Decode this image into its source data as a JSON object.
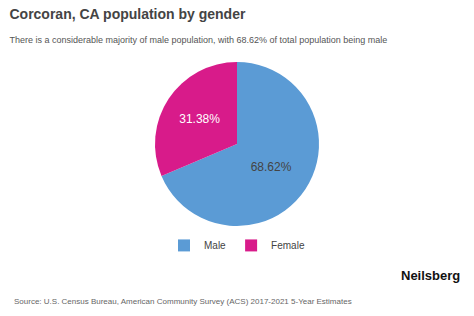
{
  "chart_data": {
    "type": "pie",
    "title": "Corcoran, CA population by gender",
    "subtitle": "There is a considerable majority of male population, with 68.62% of total population being male",
    "categories": [
      "Male",
      "Female"
    ],
    "values": [
      68.62,
      31.38
    ],
    "value_labels": [
      "68.62%",
      "31.38%"
    ],
    "data_labels": true,
    "colors": [
      "#5B9BD5",
      "#D81B8A"
    ],
    "legend": "bottom",
    "annotations": [
      "Source: U.S. Census Bureau, American Community Survey (ACS) 2017-2021 5-Year Estimates",
      "Neilsberg"
    ]
  }
}
